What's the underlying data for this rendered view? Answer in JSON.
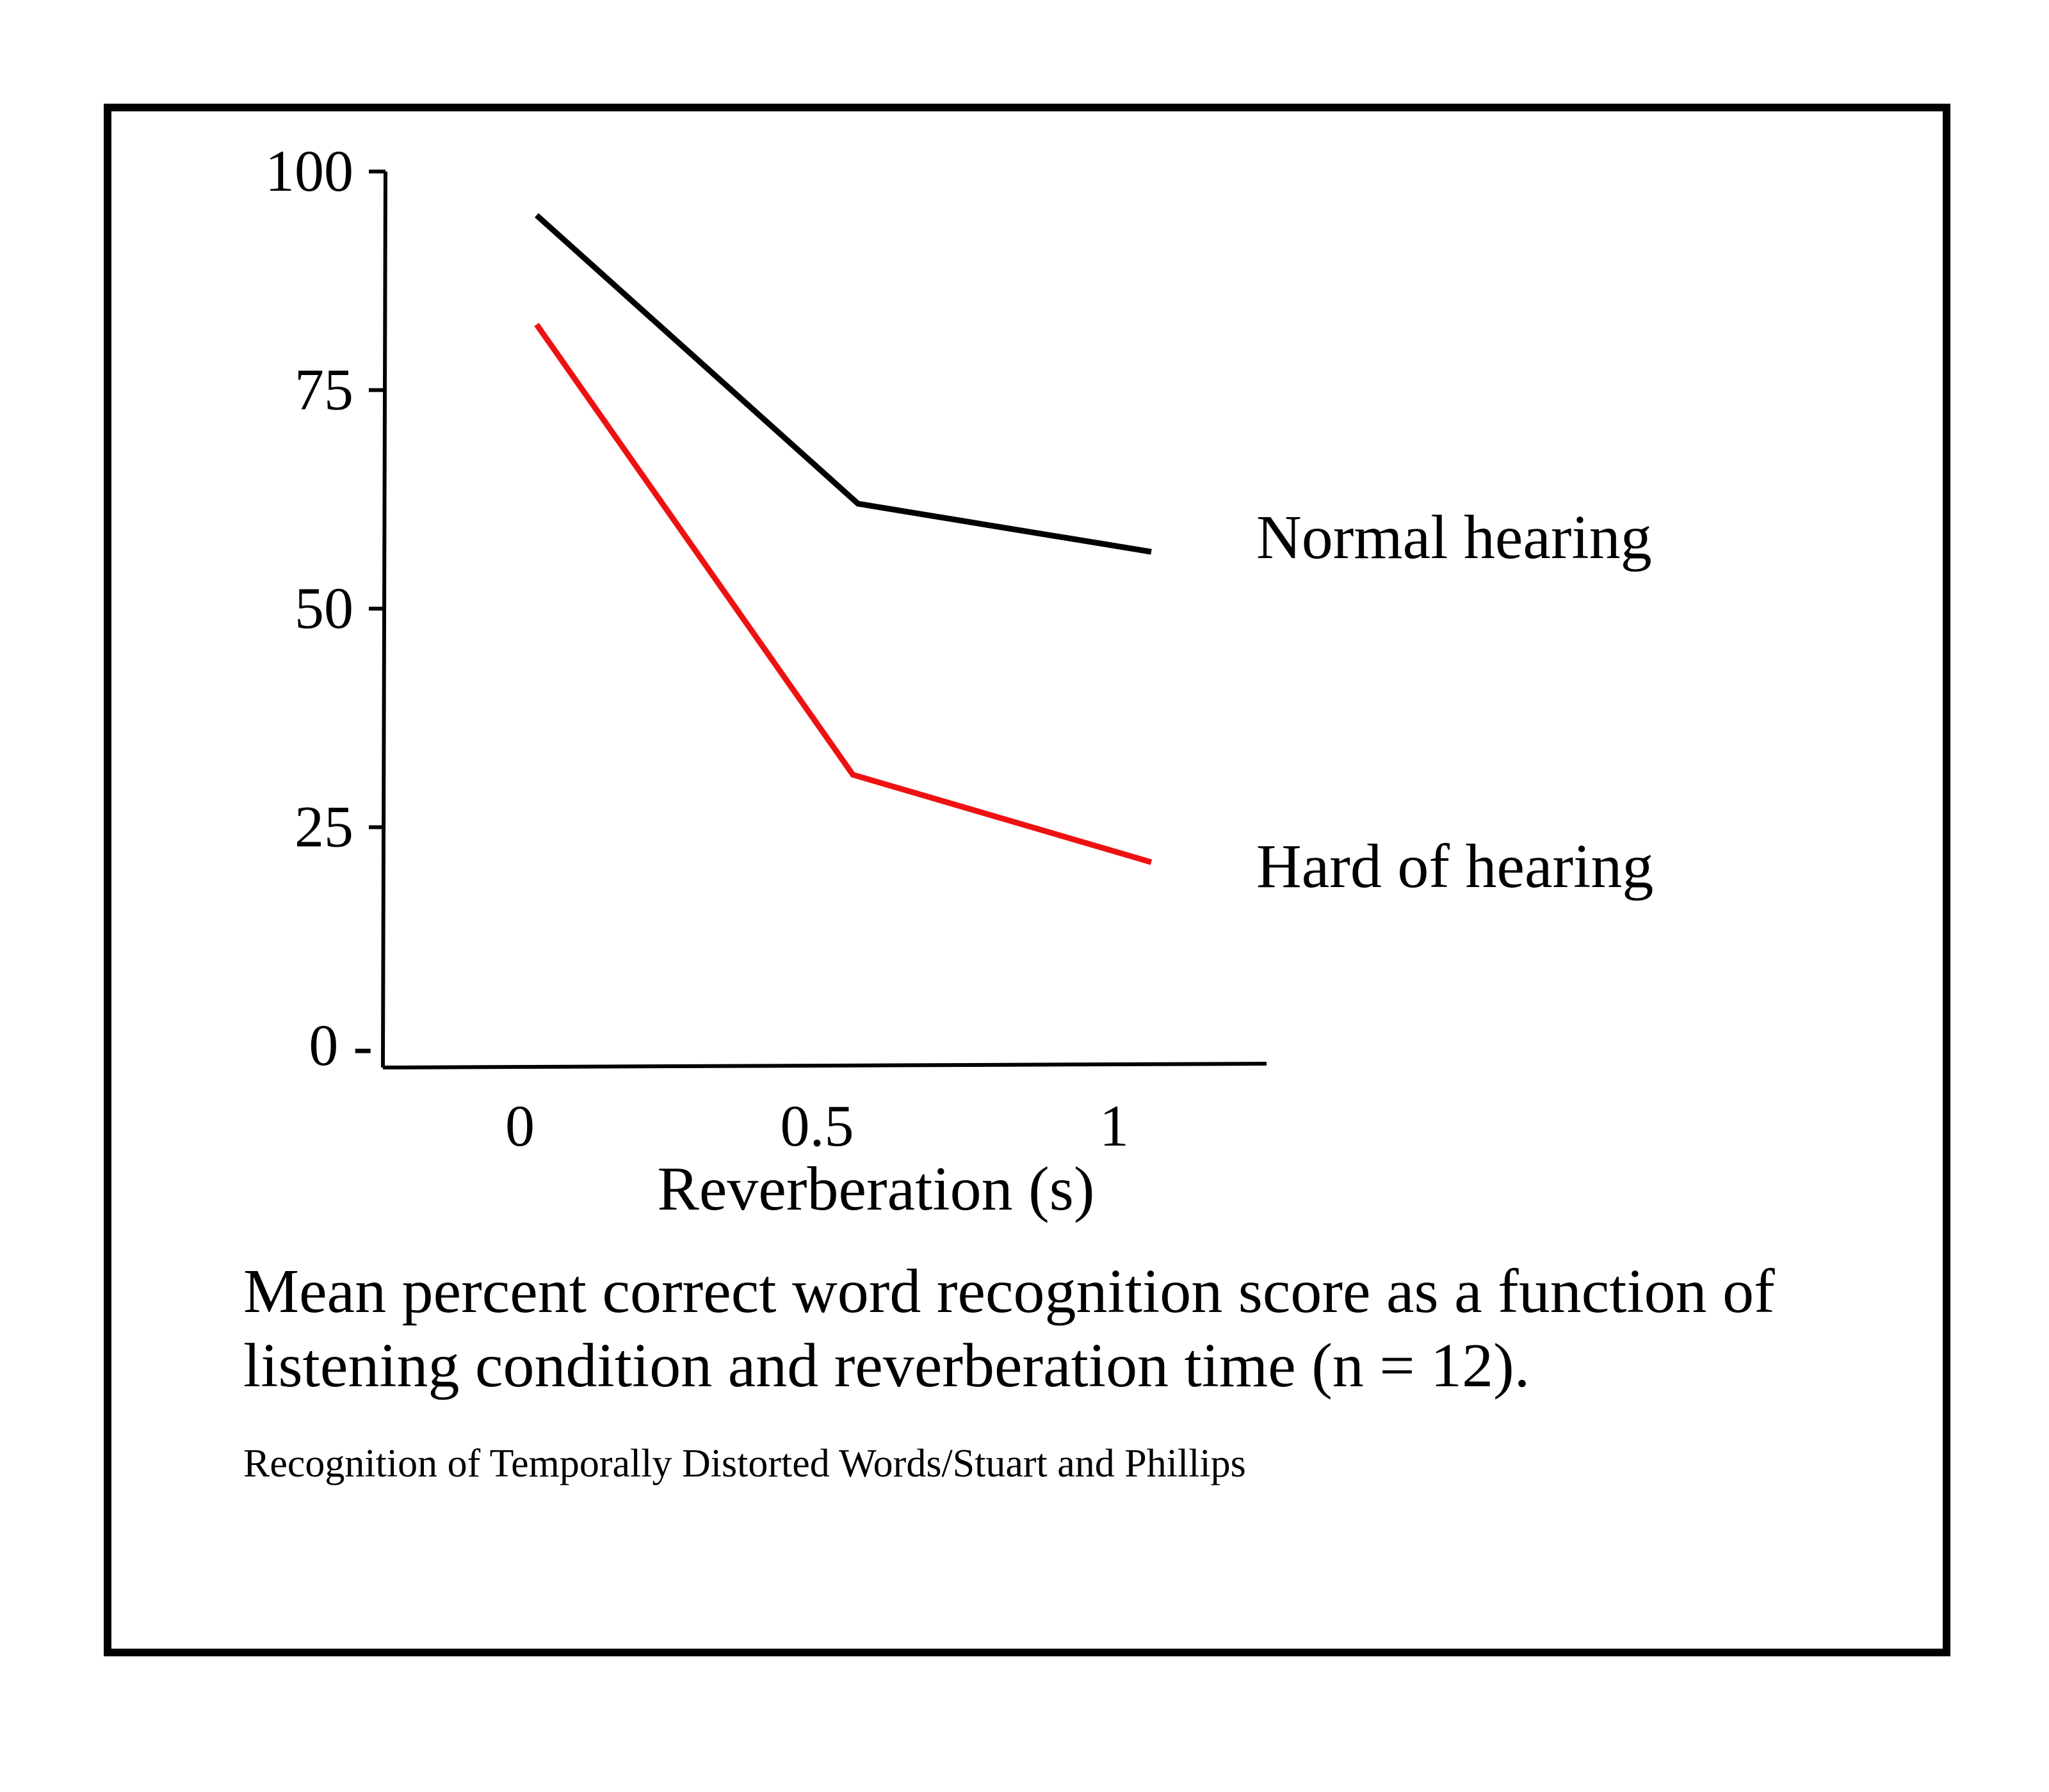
{
  "chart_data": {
    "type": "line",
    "x": [
      0,
      0.5,
      1
    ],
    "x_tick_labels": [
      "0",
      "0.5",
      "1"
    ],
    "y_ticks": [
      100,
      75,
      50,
      25,
      0
    ],
    "y_tick_labels": [
      "100",
      "75",
      "50",
      "25",
      "0 -"
    ],
    "xlabel": "Reverberation (s)",
    "ylabel": "",
    "ylim": [
      0,
      100
    ],
    "grid": false,
    "legend": "direct labels at right end of lines",
    "series": [
      {
        "name": "Normal hearing",
        "values": [
          95,
          62,
          56.5
        ],
        "color": "#000000"
      },
      {
        "name": "Hard of hearing",
        "values": [
          82.5,
          31,
          21
        ],
        "color": "#ee1111"
      }
    ]
  },
  "caption": {
    "line1": "Mean percent correct word recognition score as a function of",
    "line2": "listening condition and reverberation time (n = 12)."
  },
  "source": "Recognition of Temporally Distorted Words/Stuart and Phillips"
}
